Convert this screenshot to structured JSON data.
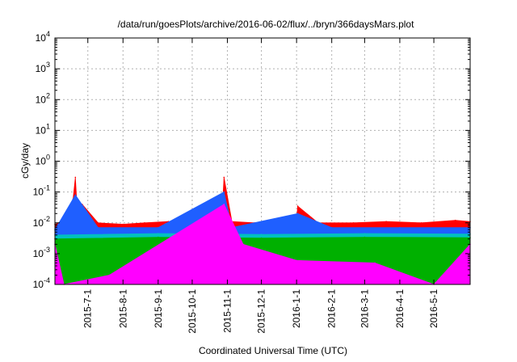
{
  "chart_data": {
    "type": "area",
    "title": "/data/run/goesPlots/archive/2016-06-02/flux/../bryn/366daysMars.plot",
    "xlabel": "Coordinated Universal Time (UTC)",
    "ylabel": "cGy/day",
    "yscale": "log",
    "ylim": [
      0.0001,
      10000
    ],
    "xlim": [
      "2015-06-02",
      "2016-06-02"
    ],
    "grid": true,
    "y_ticks": [
      {
        "base": "10",
        "exp": "-4"
      },
      {
        "base": "10",
        "exp": "-3"
      },
      {
        "base": "10",
        "exp": "-2"
      },
      {
        "base": "10",
        "exp": "-1"
      },
      {
        "base": "10",
        "exp": "0"
      },
      {
        "base": "10",
        "exp": "1"
      },
      {
        "base": "10",
        "exp": "2"
      },
      {
        "base": "10",
        "exp": "3"
      },
      {
        "base": "10",
        "exp": "4"
      }
    ],
    "x_ticks": [
      "2015-7-1",
      "2015-8-1",
      "2015-9-1",
      "2015-10-1",
      "2015-11-1",
      "2015-12-1",
      "2016-1-1",
      "2016-2-1",
      "2016-3-1",
      "2016-4-1",
      "2016-5-1"
    ],
    "series": [
      {
        "color": "#ff0000",
        "x": [
          "2015-06-02",
          "2015-06-12",
          "2015-06-18",
          "2015-06-20",
          "2015-06-22",
          "2015-06-26",
          "2015-07-10",
          "2015-08-01",
          "2015-08-20",
          "2015-09-10",
          "2015-10-01",
          "2015-10-20",
          "2015-10-27",
          "2015-10-29",
          "2015-11-05",
          "2015-11-25",
          "2015-12-20",
          "2016-01-01",
          "2016-01-02",
          "2016-01-20",
          "2016-02-20",
          "2016-03-20",
          "2016-04-20",
          "2016-05-20",
          "2016-06-02"
        ],
        "values": [
          0.009,
          0.012,
          0.06,
          0.3,
          0.015,
          0.04,
          0.01,
          0.009,
          0.01,
          0.011,
          0.01,
          0.01,
          0.012,
          0.3,
          0.011,
          0.01,
          0.009,
          0.012,
          0.035,
          0.01,
          0.01,
          0.011,
          0.01,
          0.012,
          0.011
        ]
      },
      {
        "color": "#1f5fff",
        "x": [
          "2015-06-02",
          "2015-06-20",
          "2015-07-10",
          "2015-09-01",
          "2015-10-29",
          "2015-11-05",
          "2016-01-02",
          "2016-02-01",
          "2016-04-01",
          "2016-06-02"
        ],
        "values": [
          0.006,
          0.08,
          0.007,
          0.007,
          0.1,
          0.007,
          0.02,
          0.007,
          0.007,
          0.007
        ]
      },
      {
        "color": "#00c0c0",
        "x": [
          "2015-06-02",
          "2015-09-01",
          "2015-12-01",
          "2016-03-01",
          "2016-06-02"
        ],
        "values": [
          0.004,
          0.0045,
          0.0042,
          0.0045,
          0.0043
        ]
      },
      {
        "color": "#00b000",
        "x": [
          "2015-06-02",
          "2015-09-01",
          "2015-12-01",
          "2016-03-01",
          "2016-06-02"
        ],
        "values": [
          0.003,
          0.0034,
          0.0032,
          0.0034,
          0.0033
        ]
      },
      {
        "color": "#ff00ff",
        "x": [
          "2015-06-02",
          "2015-06-10",
          "2015-07-20",
          "2015-10-29",
          "2015-11-15",
          "2016-01-01",
          "2016-03-10",
          "2016-05-01",
          "2016-06-02"
        ],
        "values": [
          0.002,
          0.0001,
          0.0002,
          0.04,
          0.002,
          0.0006,
          0.0005,
          0.0001,
          0.002
        ]
      }
    ]
  }
}
